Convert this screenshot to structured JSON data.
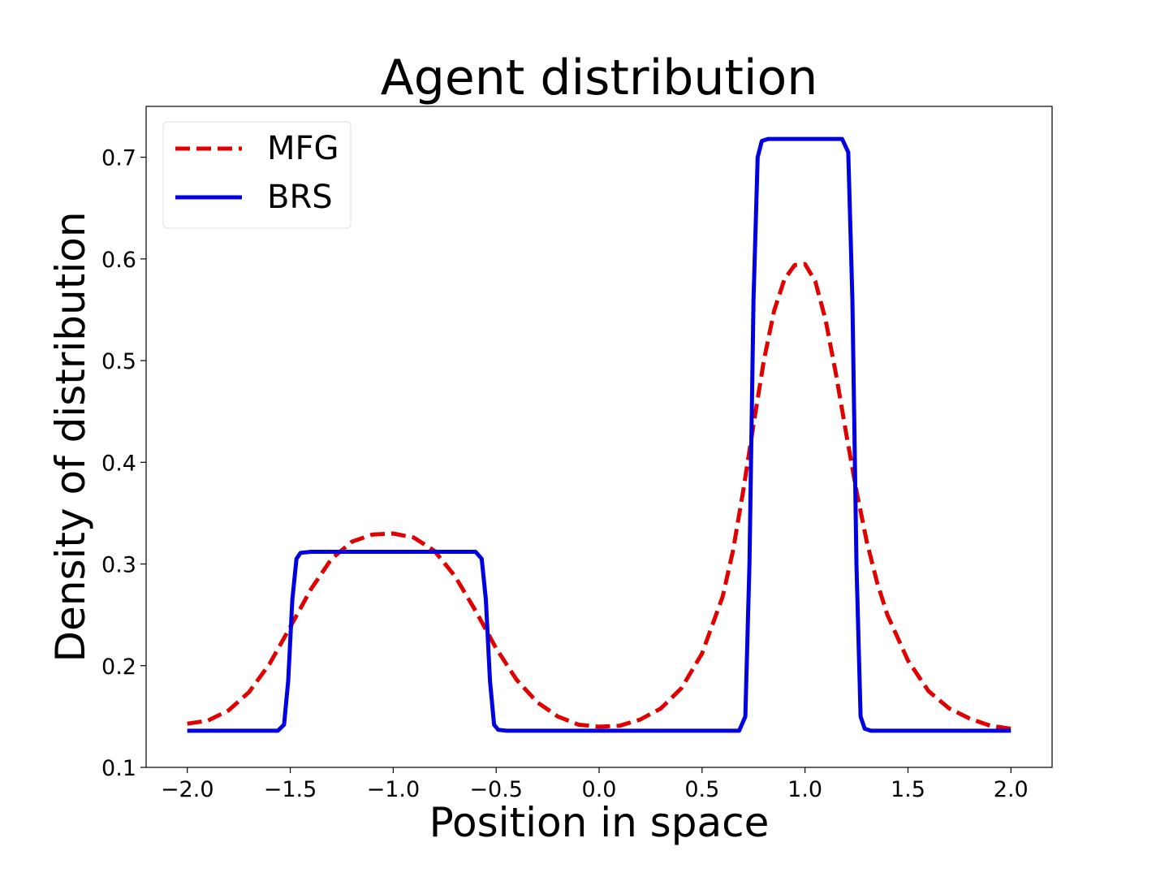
{
  "chart_data": {
    "type": "line",
    "title": "Agent distribution",
    "xlabel": "Position in space",
    "ylabel": "Density of distribution",
    "xlim": [
      -2.2,
      2.2
    ],
    "ylim": [
      0.1,
      0.75
    ],
    "xticks": [
      -2.0,
      -1.5,
      -1.0,
      -0.5,
      0.0,
      0.5,
      1.0,
      1.5,
      2.0
    ],
    "xtick_labels": [
      "−2.0",
      "−1.5",
      "−1.0",
      "−0.5",
      "0.0",
      "0.5",
      "1.0",
      "1.5",
      "2.0"
    ],
    "yticks": [
      0.1,
      0.2,
      0.3,
      0.4,
      0.5,
      0.6,
      0.7
    ],
    "ytick_labels": [
      "0.1",
      "0.2",
      "0.3",
      "0.4",
      "0.5",
      "0.6",
      "0.7"
    ],
    "grid": false,
    "legend_position": "top-left",
    "series": [
      {
        "name": "MFG",
        "color": "#e00000",
        "style": "dashed",
        "x": [
          -2.0,
          -1.9,
          -1.8,
          -1.7,
          -1.6,
          -1.5,
          -1.4,
          -1.3,
          -1.2,
          -1.1,
          -1.0,
          -0.9,
          -0.8,
          -0.7,
          -0.6,
          -0.5,
          -0.4,
          -0.3,
          -0.2,
          -0.1,
          0.0,
          0.1,
          0.2,
          0.3,
          0.4,
          0.5,
          0.6,
          0.65,
          0.7,
          0.75,
          0.8,
          0.85,
          0.9,
          0.95,
          1.0,
          1.05,
          1.1,
          1.15,
          1.2,
          1.25,
          1.3,
          1.35,
          1.4,
          1.5,
          1.6,
          1.7,
          1.8,
          1.9,
          2.0
        ],
        "y": [
          0.143,
          0.146,
          0.156,
          0.174,
          0.202,
          0.238,
          0.275,
          0.305,
          0.322,
          0.329,
          0.33,
          0.326,
          0.313,
          0.288,
          0.254,
          0.217,
          0.186,
          0.164,
          0.15,
          0.142,
          0.14,
          0.141,
          0.147,
          0.158,
          0.178,
          0.212,
          0.268,
          0.313,
          0.372,
          0.437,
          0.5,
          0.549,
          0.58,
          0.594,
          0.595,
          0.578,
          0.54,
          0.487,
          0.428,
          0.372,
          0.322,
          0.282,
          0.25,
          0.205,
          0.175,
          0.158,
          0.148,
          0.141,
          0.138
        ]
      },
      {
        "name": "BRS",
        "color": "#0000e0",
        "style": "solid",
        "x": [
          -2.0,
          -1.56,
          -1.53,
          -1.51,
          -1.49,
          -1.47,
          -1.45,
          -1.4,
          -1.0,
          -0.6,
          -0.57,
          -0.55,
          -0.53,
          -0.51,
          -0.49,
          -0.45,
          0.0,
          0.5,
          0.68,
          0.71,
          0.73,
          0.75,
          0.77,
          0.79,
          0.82,
          1.0,
          1.18,
          1.21,
          1.23,
          1.25,
          1.27,
          1.29,
          1.32,
          1.5,
          2.0
        ],
        "y": [
          0.136,
          0.136,
          0.142,
          0.185,
          0.265,
          0.305,
          0.311,
          0.312,
          0.312,
          0.312,
          0.305,
          0.265,
          0.185,
          0.142,
          0.137,
          0.136,
          0.136,
          0.136,
          0.136,
          0.15,
          0.3,
          0.56,
          0.7,
          0.716,
          0.718,
          0.718,
          0.718,
          0.705,
          0.56,
          0.3,
          0.15,
          0.138,
          0.136,
          0.136,
          0.136
        ]
      }
    ]
  }
}
